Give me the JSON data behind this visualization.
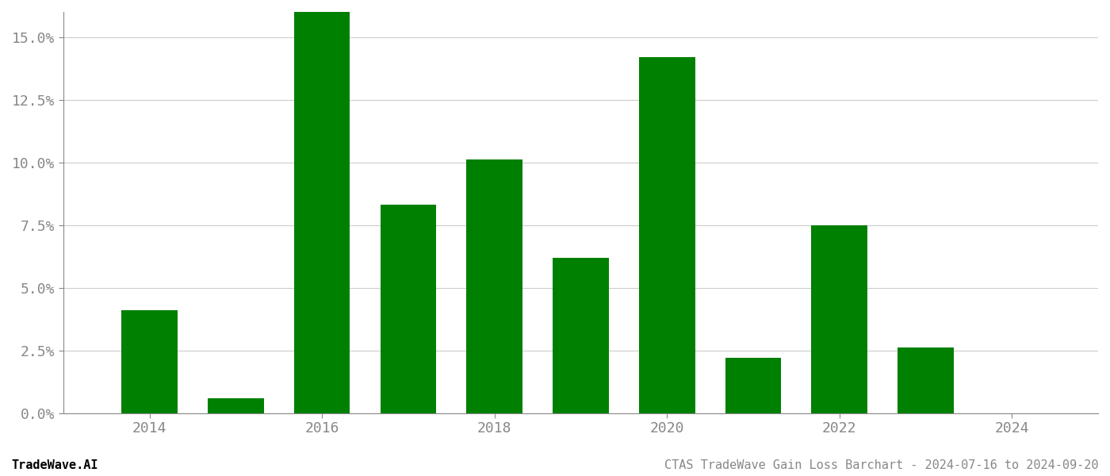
{
  "years": [
    2014,
    2015,
    2016,
    2017,
    2018,
    2019,
    2020,
    2021,
    2022,
    2023,
    2024
  ],
  "values": [
    0.041,
    0.006,
    0.17,
    0.083,
    0.101,
    0.062,
    0.142,
    0.022,
    0.075,
    0.026,
    0.0
  ],
  "bar_color": "#008000",
  "background_color": "#ffffff",
  "grid_color": "#cccccc",
  "axis_color": "#888888",
  "tick_label_color": "#888888",
  "title_right": "CTAS TradeWave Gain Loss Barchart - 2024-07-16 to 2024-09-20",
  "title_left": "TradeWave.AI",
  "title_fontsize": 11,
  "tick_fontsize": 13,
  "ylim": [
    0,
    0.16
  ],
  "yticks": [
    0.0,
    0.025,
    0.05,
    0.075,
    0.1,
    0.125,
    0.15
  ],
  "ytick_labels": [
    "0.0%",
    "2.5%",
    "5.0%",
    "7.5%",
    "10.0%",
    "12.5%",
    "15.0%"
  ],
  "bar_width": 0.65
}
